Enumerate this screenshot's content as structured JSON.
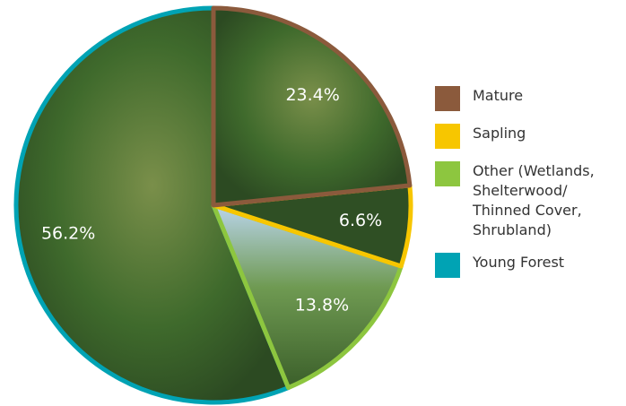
{
  "chart_data": {
    "type": "pie",
    "series": [
      {
        "name": "Mature",
        "color": "#8b5a3c",
        "value": 23.4,
        "value_label": "23.4%"
      },
      {
        "name": "Sapling",
        "color": "#f7c600",
        "value": 6.6,
        "value_label": "6.6%"
      },
      {
        "name": "Other (Wetlands, Shelterwood/ Thinned Cover, Shrubland)",
        "color": "#8dc63f",
        "value": 13.8,
        "value_label": "13.8%"
      },
      {
        "name": "Young Forest",
        "color": "#00a3b4",
        "value": 56.2,
        "value_label": "56.2%"
      }
    ]
  }
}
